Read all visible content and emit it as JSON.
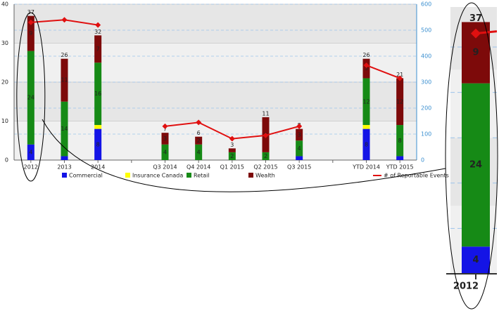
{
  "chart_data": {
    "type": "bar",
    "stacked": true,
    "categories": [
      "2012",
      "2013",
      "2014",
      null,
      "Q3 2014",
      "Q4 2014",
      "Q1 2015",
      "Q2 2015",
      "Q3 2015",
      null,
      "YTD 2014",
      "YTD 2015"
    ],
    "series": [
      {
        "name": "Commercial",
        "color": "#1414e6",
        "values": [
          4,
          1,
          8,
          null,
          0,
          0,
          0,
          0,
          1,
          null,
          8,
          1
        ]
      },
      {
        "name": "Insurance Canada",
        "color": "#ffff00",
        "values": [
          0,
          0,
          1,
          null,
          0,
          0,
          0,
          0,
          0,
          null,
          1,
          0
        ]
      },
      {
        "name": "Retail",
        "color": "#168a16",
        "values": [
          24,
          14,
          16,
          null,
          4,
          4,
          2,
          2,
          4,
          null,
          12,
          8
        ]
      },
      {
        "name": "Wealth",
        "color": "#7d0a0a",
        "values": [
          9,
          11,
          7,
          null,
          3,
          2,
          1,
          9,
          3,
          null,
          5,
          12
        ]
      },
      {
        "name": "# of Reportable Events",
        "type": "line",
        "axis": "y2",
        "color": "#e01010",
        "values": [
          530,
          540,
          520,
          null,
          130,
          145,
          82,
          95,
          130,
          null,
          365,
          315
        ]
      }
    ],
    "totals": [
      37,
      26,
      32,
      null,
      7,
      6,
      3,
      11,
      8,
      null,
      26,
      21
    ],
    "ylim": [
      0,
      40
    ],
    "yticks": [
      0,
      10,
      20,
      30,
      40
    ],
    "y2lim": [
      0,
      600
    ],
    "y2ticks": [
      0,
      100,
      200,
      300,
      400,
      500,
      600
    ],
    "grid": true,
    "legend": "bottom",
    "zoom_category": 0
  }
}
